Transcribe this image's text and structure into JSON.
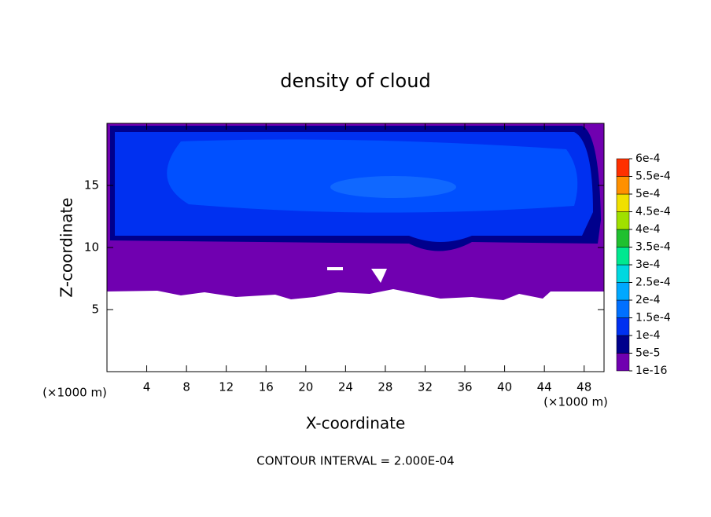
{
  "chart_data": {
    "type": "contour",
    "title": "density of cloud",
    "x_label": "X-coordinate",
    "y_label": "Z-coordinate",
    "x_unit": "(×1000 m)",
    "y_unit": "(×1000 m)",
    "note": "CONTOUR INTERVAL = 2.000E-04",
    "xlim": [
      0,
      50
    ],
    "xticks": [
      4,
      8,
      12,
      16,
      20,
      24,
      28,
      32,
      36,
      40,
      44,
      48
    ],
    "ylim": [
      0,
      20
    ],
    "yticks": [
      5,
      10,
      15
    ],
    "colorbar": {
      "levels": [
        {
          "value": 1e-16,
          "label": "1e-16"
        },
        {
          "value": 5e-05,
          "label": "5e-5"
        },
        {
          "value": 0.0001,
          "label": "1e-4"
        },
        {
          "value": 0.00015,
          "label": "1.5e-4"
        },
        {
          "value": 0.0002,
          "label": "2e-4"
        },
        {
          "value": 0.00025,
          "label": "2.5e-4"
        },
        {
          "value": 0.0003,
          "label": "3e-4"
        },
        {
          "value": 0.00035,
          "label": "3.5e-4"
        },
        {
          "value": 0.0004,
          "label": "4e-4"
        },
        {
          "value": 0.00045,
          "label": "4.5e-4"
        },
        {
          "value": 0.0005,
          "label": "5e-4"
        },
        {
          "value": 0.00055,
          "label": "5.5e-4"
        },
        {
          "value": 0.0006,
          "label": "6e-4"
        }
      ],
      "colors": [
        "#7000b0",
        "#00008c",
        "#0030f0",
        "#0070ff",
        "#00a8ff",
        "#00d8e0",
        "#00e890",
        "#20c030",
        "#a0e000",
        "#f0e000",
        "#ff9000",
        "#ff3000"
      ]
    }
  }
}
